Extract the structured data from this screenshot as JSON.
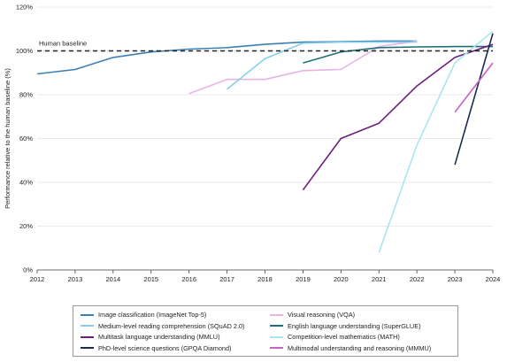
{
  "chart_data": {
    "type": "line",
    "xlabel": "",
    "ylabel": "Performance relative to the human baseline (%)",
    "xlim": [
      2012,
      2024
    ],
    "ylim": [
      0,
      120
    ],
    "x_ticks": [
      "2012",
      "2013",
      "2014",
      "2015",
      "2016",
      "2017",
      "2018",
      "2019",
      "2020",
      "2021",
      "2022",
      "2023",
      "2024"
    ],
    "y_ticks": [
      "0%",
      "20%",
      "40%",
      "60%",
      "80%",
      "100%",
      "120%"
    ],
    "grid": "horizontal",
    "legend_position": "bottom",
    "baseline": {
      "label": "Human baseline",
      "value": 100
    },
    "series": [
      {
        "name": "Image classification (ImageNet Top-5)",
        "color": "#3b80b5",
        "points": [
          [
            2012,
            89.5
          ],
          [
            2013,
            91.5
          ],
          [
            2014,
            97
          ],
          [
            2015,
            99.5
          ],
          [
            2016,
            100.8
          ],
          [
            2017,
            101.5
          ],
          [
            2018,
            103
          ],
          [
            2019,
            104
          ],
          [
            2020,
            104.2
          ],
          [
            2021,
            104.5
          ],
          [
            2022,
            104.5
          ]
        ]
      },
      {
        "name": "Visual reasoning (VQA)",
        "color": "#e8b4e6",
        "points": [
          [
            2016,
            80.5
          ],
          [
            2017,
            87
          ],
          [
            2018,
            87
          ],
          [
            2019,
            91
          ],
          [
            2020,
            91.5
          ],
          [
            2021,
            102
          ],
          [
            2022,
            104.5
          ]
        ]
      },
      {
        "name": "Medium-level reading comprehension (SQuAD 2.0)",
        "color": "#86cfee",
        "points": [
          [
            2017,
            82.5
          ],
          [
            2018,
            96.5
          ],
          [
            2019,
            103.5
          ],
          [
            2020,
            104
          ],
          [
            2021,
            104
          ],
          [
            2022,
            104
          ]
        ]
      },
      {
        "name": "English language understanding (SuperGLUE)",
        "color": "#1f6f78",
        "points": [
          [
            2019,
            94.5
          ],
          [
            2020,
            99.5
          ],
          [
            2021,
            101.5
          ],
          [
            2022,
            101.8
          ],
          [
            2023,
            102
          ],
          [
            2024,
            102
          ]
        ]
      },
      {
        "name": "Multitask language understanding (MMLU)",
        "color": "#6b1f7c",
        "points": [
          [
            2019,
            36.5
          ],
          [
            2020,
            60
          ],
          [
            2021,
            67
          ],
          [
            2022,
            84
          ],
          [
            2023,
            97
          ],
          [
            2024,
            103
          ]
        ]
      },
      {
        "name": "Competition-level mathematics (MATH)",
        "color": "#a8e6ee",
        "points": [
          [
            2021,
            8
          ],
          [
            2022,
            57
          ],
          [
            2023,
            94.5
          ],
          [
            2024,
            109
          ]
        ]
      },
      {
        "name": "PhD-level science questions (GPQA Diamond)",
        "color": "#1c2c4f",
        "points": [
          [
            2023,
            48
          ],
          [
            2024,
            108
          ]
        ]
      },
      {
        "name": "Multimodal understanding and reasoning (MMMU)",
        "color": "#c862c2",
        "points": [
          [
            2023,
            72
          ],
          [
            2024,
            94.5
          ]
        ]
      }
    ]
  }
}
